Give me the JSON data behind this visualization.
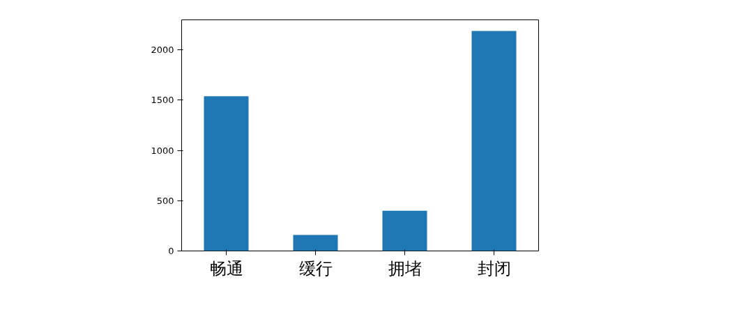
{
  "chart_data": {
    "type": "bar",
    "categories": [
      "畅通",
      "缓行",
      "拥堵",
      "封闭"
    ],
    "series": [
      {
        "color": "#1f77b4",
        "values": [
          1540,
          160,
          400,
          2190
        ]
      }
    ],
    "ylim": [
      0,
      2300
    ],
    "yticks": [
      0,
      500,
      1000,
      1500,
      2000
    ],
    "grid": false
  }
}
